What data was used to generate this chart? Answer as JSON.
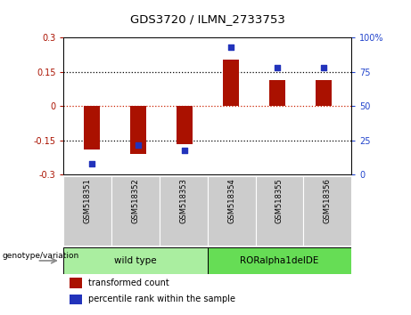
{
  "title": "GDS3720 / ILMN_2733753",
  "samples": [
    "GSM518351",
    "GSM518352",
    "GSM518353",
    "GSM518354",
    "GSM518355",
    "GSM518356"
  ],
  "bar_values": [
    -0.19,
    -0.21,
    -0.165,
    0.205,
    0.115,
    0.115
  ],
  "scatter_values": [
    8,
    22,
    18,
    93,
    78,
    78
  ],
  "ylim_left": [
    -0.3,
    0.3
  ],
  "ylim_right": [
    0,
    100
  ],
  "yticks_left": [
    -0.3,
    -0.15,
    0,
    0.15,
    0.3
  ],
  "yticks_right": [
    0,
    25,
    50,
    75,
    100
  ],
  "ytick_labels_left": [
    "-0.3",
    "-0.15",
    "0",
    "0.15",
    "0.3"
  ],
  "ytick_labels_right": [
    "0",
    "25",
    "50",
    "75",
    "100%"
  ],
  "bar_color": "#aa1100",
  "scatter_color": "#2233bb",
  "hline_color": "#cc2200",
  "group1_label": "wild type",
  "group2_label": "RORalpha1delDE",
  "group1_color": "#aaeea0",
  "group2_color": "#66dd55",
  "genotype_label": "genotype/variation",
  "legend1": "transformed count",
  "legend2": "percentile rank within the sample",
  "bg_plot": "#ffffff",
  "bg_xticklabel": "#cccccc",
  "bar_width": 0.35
}
